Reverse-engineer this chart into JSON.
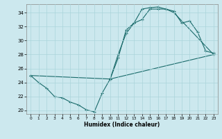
{
  "xlabel": "Humidex (Indice chaleur)",
  "xlim": [
    -0.5,
    23.5
  ],
  "ylim": [
    19.5,
    35.2
  ],
  "xticks": [
    0,
    1,
    2,
    3,
    4,
    5,
    6,
    7,
    8,
    9,
    10,
    11,
    12,
    13,
    14,
    15,
    16,
    17,
    18,
    19,
    20,
    21,
    22,
    23
  ],
  "yticks": [
    20,
    22,
    24,
    26,
    28,
    30,
    32,
    34
  ],
  "bg_color": "#cce8ee",
  "line_color": "#1a6b6b",
  "grid_color": "#aad4da",
  "curve1_x": [
    0,
    1,
    2,
    3,
    4,
    5,
    6,
    7,
    8,
    9,
    10,
    11,
    12,
    13,
    14,
    15,
    16,
    17,
    18,
    23
  ],
  "curve1_y": [
    25.0,
    24.0,
    23.2,
    22.0,
    21.8,
    21.2,
    20.8,
    20.1,
    19.8,
    22.5,
    24.5,
    28.0,
    31.0,
    32.5,
    33.0,
    34.5,
    34.5,
    34.5,
    34.0,
    28.0
  ],
  "curve2_x": [
    0,
    10,
    11,
    12,
    13,
    14,
    15,
    16,
    17,
    18,
    19,
    20,
    21,
    22,
    23
  ],
  "curve2_y": [
    25.0,
    24.5,
    27.5,
    31.5,
    32.5,
    34.5,
    34.7,
    34.8,
    34.5,
    34.2,
    32.5,
    32.8,
    31.2,
    28.5,
    28.2
  ],
  "curve3_x": [
    10,
    23
  ],
  "curve3_y": [
    24.5,
    28.0
  ]
}
